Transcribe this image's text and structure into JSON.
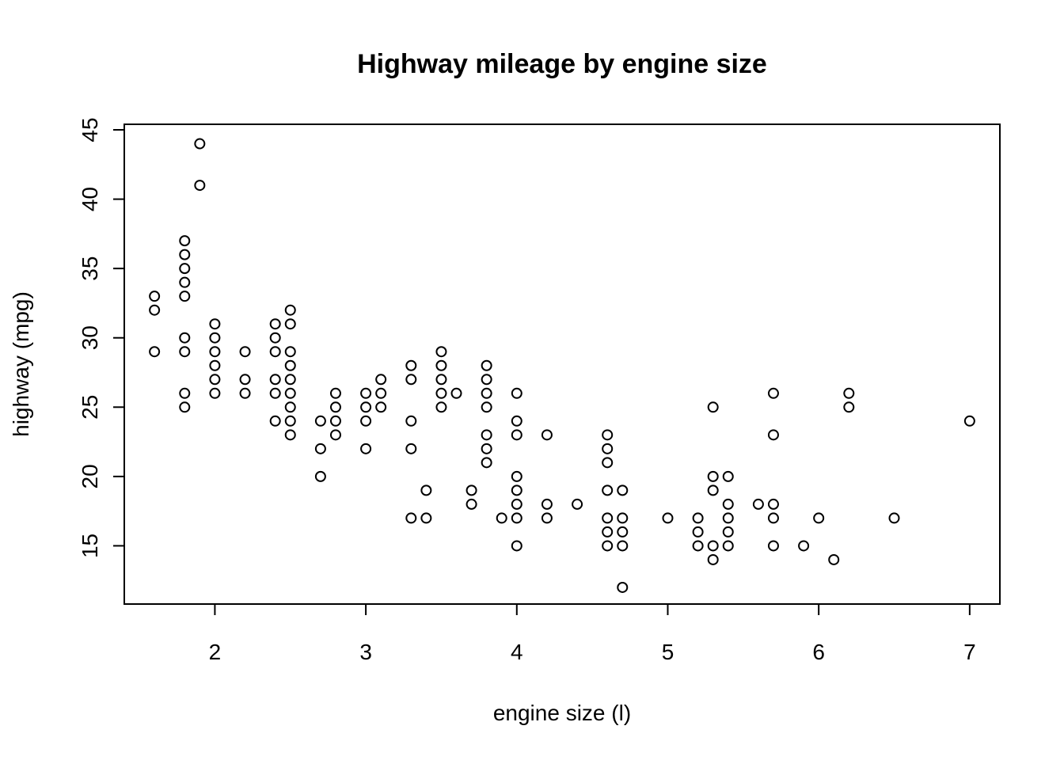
{
  "chart_data": {
    "type": "scatter",
    "title": "Highway mileage by engine size",
    "xlabel": "engine size (l)",
    "ylabel": "highway (mpg)",
    "xlim": [
      1.4,
      7.2
    ],
    "ylim": [
      10.8,
      45.4
    ],
    "xticks": [
      2,
      3,
      4,
      5,
      6,
      7
    ],
    "yticks": [
      15,
      20,
      25,
      30,
      35,
      40,
      45
    ],
    "grid": false,
    "legend": "none",
    "points": [
      [
        1.6,
        33
      ],
      [
        1.6,
        32
      ],
      [
        1.6,
        29
      ],
      [
        1.8,
        37
      ],
      [
        1.8,
        36
      ],
      [
        1.8,
        35
      ],
      [
        1.8,
        34
      ],
      [
        1.8,
        33
      ],
      [
        1.8,
        30
      ],
      [
        1.8,
        29
      ],
      [
        1.8,
        26
      ],
      [
        1.8,
        25
      ],
      [
        1.9,
        44
      ],
      [
        1.9,
        41
      ],
      [
        2.0,
        31
      ],
      [
        2.0,
        30
      ],
      [
        2.0,
        29
      ],
      [
        2.0,
        28
      ],
      [
        2.0,
        27
      ],
      [
        2.0,
        26
      ],
      [
        2.2,
        29
      ],
      [
        2.2,
        27
      ],
      [
        2.2,
        26
      ],
      [
        2.4,
        31
      ],
      [
        2.4,
        30
      ],
      [
        2.4,
        29
      ],
      [
        2.4,
        27
      ],
      [
        2.4,
        26
      ],
      [
        2.4,
        24
      ],
      [
        2.5,
        32
      ],
      [
        2.5,
        31
      ],
      [
        2.5,
        29
      ],
      [
        2.5,
        28
      ],
      [
        2.5,
        27
      ],
      [
        2.5,
        26
      ],
      [
        2.5,
        25
      ],
      [
        2.5,
        24
      ],
      [
        2.5,
        23
      ],
      [
        2.7,
        24
      ],
      [
        2.7,
        22
      ],
      [
        2.7,
        20
      ],
      [
        2.8,
        26
      ],
      [
        2.8,
        25
      ],
      [
        2.8,
        24
      ],
      [
        2.8,
        23
      ],
      [
        3.0,
        26
      ],
      [
        3.0,
        25
      ],
      [
        3.0,
        24
      ],
      [
        3.0,
        22
      ],
      [
        3.1,
        27
      ],
      [
        3.1,
        26
      ],
      [
        3.1,
        25
      ],
      [
        3.3,
        28
      ],
      [
        3.3,
        27
      ],
      [
        3.3,
        24
      ],
      [
        3.3,
        22
      ],
      [
        3.3,
        17
      ],
      [
        3.4,
        19
      ],
      [
        3.4,
        17
      ],
      [
        3.5,
        29
      ],
      [
        3.5,
        28
      ],
      [
        3.5,
        27
      ],
      [
        3.5,
        26
      ],
      [
        3.5,
        25
      ],
      [
        3.6,
        26
      ],
      [
        3.7,
        19
      ],
      [
        3.7,
        18
      ],
      [
        3.8,
        28
      ],
      [
        3.8,
        27
      ],
      [
        3.8,
        26
      ],
      [
        3.8,
        25
      ],
      [
        3.8,
        23
      ],
      [
        3.8,
        22
      ],
      [
        3.8,
        21
      ],
      [
        3.9,
        17
      ],
      [
        4.0,
        26
      ],
      [
        4.0,
        24
      ],
      [
        4.0,
        23
      ],
      [
        4.0,
        20
      ],
      [
        4.0,
        19
      ],
      [
        4.0,
        18
      ],
      [
        4.0,
        17
      ],
      [
        4.0,
        15
      ],
      [
        4.2,
        23
      ],
      [
        4.2,
        18
      ],
      [
        4.2,
        17
      ],
      [
        4.4,
        18
      ],
      [
        4.6,
        23
      ],
      [
        4.6,
        22
      ],
      [
        4.6,
        21
      ],
      [
        4.6,
        19
      ],
      [
        4.6,
        17
      ],
      [
        4.6,
        16
      ],
      [
        4.6,
        15
      ],
      [
        4.7,
        19
      ],
      [
        4.7,
        17
      ],
      [
        4.7,
        16
      ],
      [
        4.7,
        15
      ],
      [
        4.7,
        12
      ],
      [
        5.0,
        17
      ],
      [
        5.2,
        17
      ],
      [
        5.2,
        16
      ],
      [
        5.2,
        15
      ],
      [
        5.3,
        25
      ],
      [
        5.3,
        20
      ],
      [
        5.3,
        19
      ],
      [
        5.3,
        15
      ],
      [
        5.3,
        14
      ],
      [
        5.4,
        20
      ],
      [
        5.4,
        18
      ],
      [
        5.4,
        17
      ],
      [
        5.4,
        16
      ],
      [
        5.4,
        15
      ],
      [
        5.6,
        18
      ],
      [
        5.7,
        26
      ],
      [
        5.7,
        23
      ],
      [
        5.7,
        18
      ],
      [
        5.7,
        17
      ],
      [
        5.7,
        15
      ],
      [
        5.9,
        15
      ],
      [
        6.0,
        17
      ],
      [
        6.1,
        14
      ],
      [
        6.2,
        26
      ],
      [
        6.2,
        25
      ],
      [
        6.5,
        17
      ],
      [
        7.0,
        24
      ]
    ]
  }
}
